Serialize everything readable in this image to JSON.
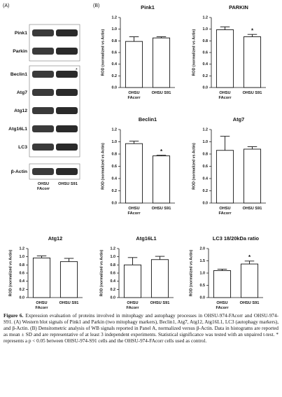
{
  "panel_labels": [
    "(A)",
    "(B)"
  ],
  "panel_a": {
    "bands": [
      "Pink1",
      "Parkin",
      "Beclin1",
      "Atg7",
      "Atg12",
      "Atg16L1",
      "LC3",
      "β-Actin"
    ],
    "star": "*",
    "lanes": [
      "OHSU FAcorr",
      "OHSU S91"
    ]
  },
  "chart_data": [
    {
      "type": "bar",
      "title": "Pink1",
      "ylabel": "ROD (normalized vs Actin)",
      "categories": [
        "OHSU FAcorr",
        "OHSU S91"
      ],
      "values": [
        0.79,
        0.85
      ],
      "errors": [
        0.08,
        0.02
      ],
      "significance": [
        null,
        null
      ],
      "color": "#ffffff",
      "ylim": [
        0,
        1.2
      ],
      "yticks": [
        {
          "value": 0,
          "label": "0.0"
        },
        0.2,
        0.4,
        0.6,
        0.8,
        {
          "value": 1,
          "label": "1.0"
        },
        1.2
      ]
    },
    {
      "type": "bar",
      "title": "PARKIN",
      "ylabel": "ROD (normalized vs Actin)",
      "categories": [
        "OHSU FAcorr",
        "OHSU S91"
      ],
      "values": [
        0.99,
        0.87
      ],
      "errors": [
        0.05,
        0.04
      ],
      "significance": [
        null,
        "*"
      ],
      "color": "#ffffff",
      "ylim": [
        0,
        1.2
      ],
      "yticks": [
        {
          "value": 0,
          "label": "0.0"
        },
        0.2,
        0.4,
        0.6,
        0.8,
        {
          "value": 1,
          "label": "1.0"
        },
        1.2
      ]
    },
    {
      "type": "bar",
      "title": "Beclin1",
      "ylabel": "ROD (normalized vs Actin)",
      "categories": [
        "OHSU FAcorr",
        "OHSU S91"
      ],
      "values": [
        0.97,
        0.77
      ],
      "errors": [
        0.04,
        0.01
      ],
      "significance": [
        null,
        "*"
      ],
      "color": "#ffffff",
      "ylim": [
        0,
        1.2
      ],
      "yticks": [
        {
          "value": 0,
          "label": "0.0"
        },
        0.2,
        0.4,
        0.6,
        0.8,
        {
          "value": 1,
          "label": "1.0"
        },
        1.2
      ]
    },
    {
      "type": "bar",
      "title": "Atg7",
      "ylabel": "ROD (normalized vs Actin)",
      "categories": [
        "OHSU FAcorr",
        "OHSU S91"
      ],
      "values": [
        0.86,
        0.88
      ],
      "errors": [
        0.23,
        0.04
      ],
      "significance": [
        null,
        null
      ],
      "color": "#ffffff",
      "ylim": [
        0,
        1.2
      ],
      "yticks": [
        {
          "value": 0,
          "label": "0.0"
        },
        0.2,
        0.4,
        0.6,
        0.8,
        {
          "value": 1,
          "label": "1.0"
        },
        1.2
      ]
    },
    {
      "type": "bar",
      "title": "Atg12",
      "ylabel": "ROD (normalized vs Actin)",
      "categories": [
        "OHSU FAcorr",
        "OHSU S91"
      ],
      "values": [
        0.97,
        0.88
      ],
      "errors": [
        0.05,
        0.08
      ],
      "significance": [
        null,
        null
      ],
      "color": "#ffffff",
      "ylim": [
        0,
        1.2
      ],
      "yticks": [
        {
          "value": 0,
          "label": "0.0"
        },
        0.2,
        0.4,
        0.6,
        0.8,
        {
          "value": 1,
          "label": "1.0"
        },
        1.2
      ]
    },
    {
      "type": "bar",
      "title": "Atg16L1",
      "ylabel": "ROD (normalized vs Actin)",
      "categories": [
        "OHSU FAcorr",
        "OHSU S91"
      ],
      "values": [
        0.8,
        0.93
      ],
      "errors": [
        0.18,
        0.08
      ],
      "significance": [
        null,
        null
      ],
      "color": "#ffffff",
      "ylim": [
        0,
        1.2
      ],
      "yticks": [
        {
          "value": 0,
          "label": "0.0"
        },
        0.2,
        0.4,
        0.6,
        0.8,
        {
          "value": 1,
          "label": "1.0"
        },
        1.2
      ]
    },
    {
      "type": "bar",
      "title": "LC3 18/20kDa ratio",
      "ylabel": "ROD (normalized vs Actin)",
      "categories": [
        "OHSU FAcorr",
        "OHSU S91"
      ],
      "values": [
        1.1,
        1.37
      ],
      "errors": [
        0.06,
        0.12
      ],
      "significance": [
        null,
        "*"
      ],
      "color": "#ffffff",
      "ylim": [
        0,
        2
      ],
      "yticks": [
        {
          "value": 0,
          "label": "0.0"
        },
        0.5,
        {
          "value": 1,
          "label": "1.0"
        },
        1.5,
        {
          "value": 2,
          "label": "2.0"
        }
      ]
    }
  ],
  "caption": {
    "label": "Figure 6.",
    "text": "Expression evaluation of proteins involved in mitophagy and autophagy processes in OHSU-974-FAcorr and OHSU-974-S91. (A) Western blot signals of Pink1 and Parkin (two mitophagy markers), Beclin1, Atg7, Atg12, Atg16L1, LC3 (autophagy markers), and β-Actin. (B) Densitometric analysis of WB signals reported in Panel A, normalized versus β-Actin. Data in histograms are reported as mean ± SD and are representative of at least 3 independent experiments. Statistical significance was tested with an unpaired t-test. * represents a p < 0.05 between OHSU-974-S91 cells and the OHSU-974-FAcorr cells used as control."
  }
}
